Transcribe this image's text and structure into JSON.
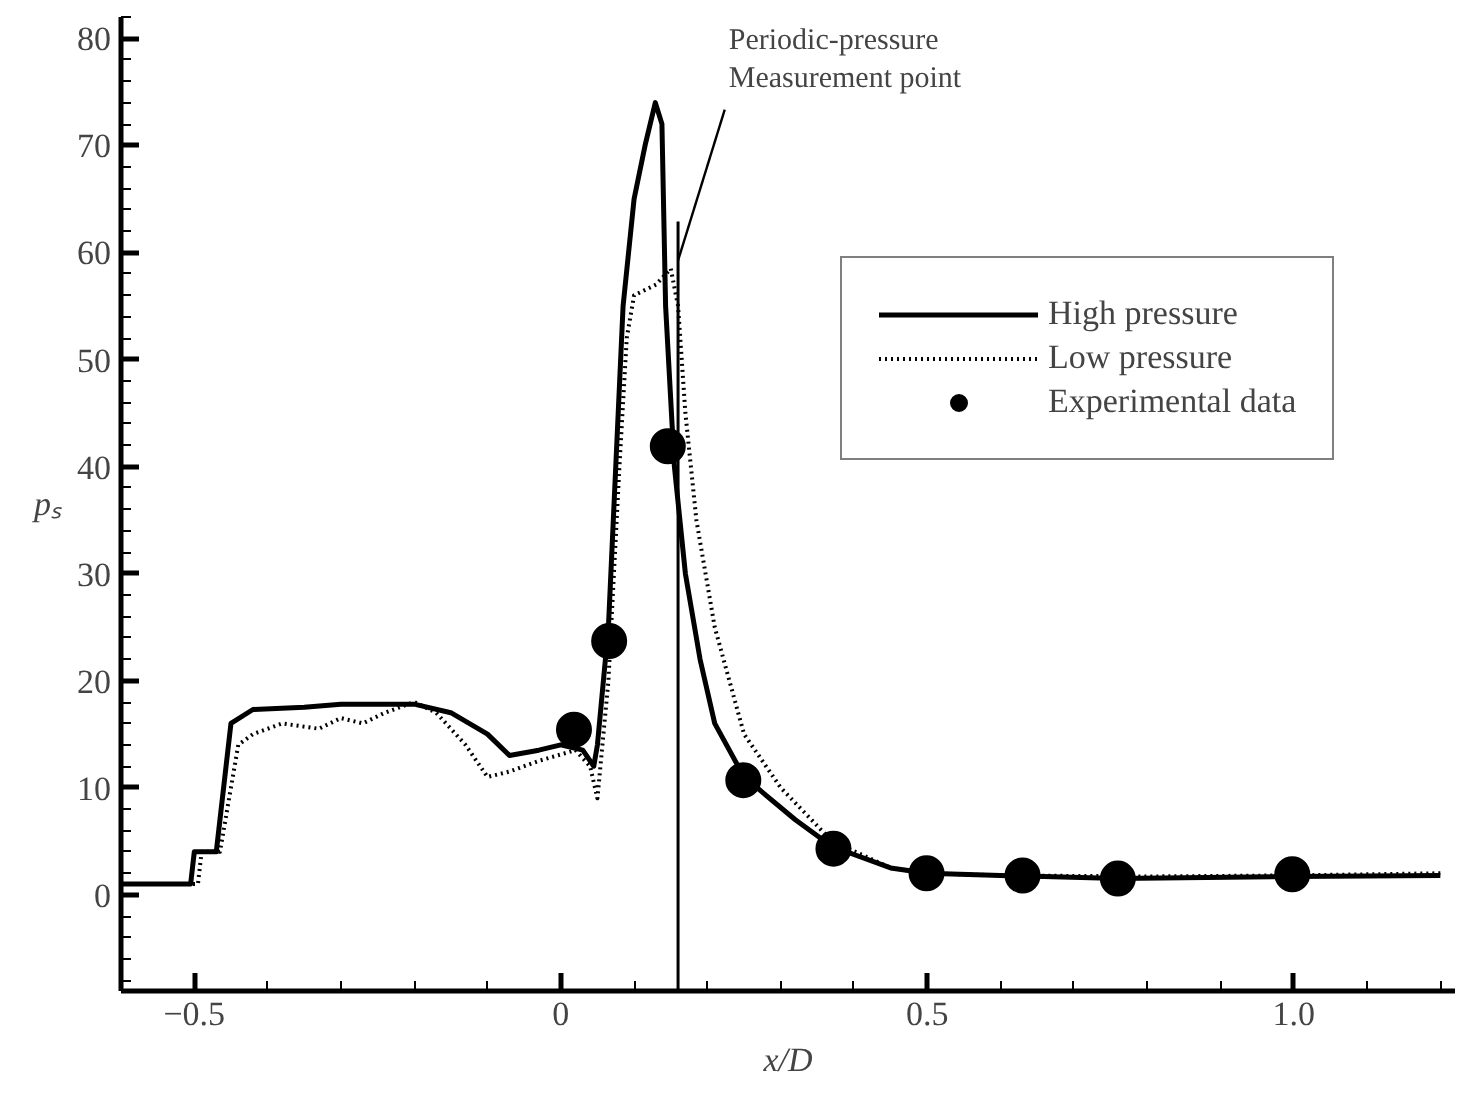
{
  "chart_data": {
    "type": "line",
    "xlabel": "x/D",
    "ylabel": "pₛ",
    "xlim": [
      -0.6,
      1.22
    ],
    "ylim": [
      -9,
      82
    ],
    "xticks": [
      {
        "value": -0.5,
        "label": "−0.5"
      },
      0,
      0.5,
      {
        "value": 1,
        "label": "1.0"
      }
    ],
    "yticks": [
      0,
      10,
      20,
      30,
      40,
      50,
      60,
      70,
      80
    ],
    "grid": false,
    "legend": "top right",
    "ref_lines": [
      {
        "axis": "x",
        "value": 0.16,
        "label": "Periodic-pressure\nMeasurement point"
      }
    ],
    "series": [
      {
        "name": "High pressure",
        "color": "#000000",
        "line_style": "solid",
        "marker": "none",
        "x": [
          -0.6,
          -0.505,
          -0.5,
          -0.47,
          -0.45,
          -0.42,
          -0.35,
          -0.3,
          -0.2,
          -0.15,
          -0.1,
          -0.07,
          -0.03,
          0,
          0.03,
          0.045,
          0.05,
          0.065,
          0.075,
          0.085,
          0.1,
          0.115,
          0.129,
          0.138,
          0.143,
          0.155,
          0.17,
          0.19,
          0.21,
          0.25,
          0.32,
          0.37,
          0.45,
          0.5,
          0.6,
          0.76,
          1.0,
          1.2
        ],
        "values": [
          1,
          1,
          4,
          4,
          16,
          17.3,
          17.5,
          17.8,
          17.8,
          17,
          15,
          13,
          13.5,
          14,
          13.5,
          12,
          14,
          25,
          40,
          55,
          65,
          70,
          74,
          72,
          55,
          40,
          30,
          22,
          16,
          11,
          7,
          4.5,
          2.5,
          2,
          1.8,
          1.5,
          1.7,
          1.8
        ]
      },
      {
        "name": "Low pressure",
        "color": "#000000",
        "line_style": "dotted",
        "marker": "none",
        "x": [
          -0.6,
          -0.495,
          -0.49,
          -0.465,
          -0.44,
          -0.42,
          -0.38,
          -0.33,
          -0.3,
          -0.27,
          -0.24,
          -0.2,
          -0.17,
          -0.13,
          -0.1,
          -0.07,
          -0.03,
          0.02,
          0.04,
          0.05,
          0.065,
          0.08,
          0.09,
          0.1,
          0.13,
          0.15,
          0.16,
          0.17,
          0.185,
          0.21,
          0.25,
          0.3,
          0.37,
          0.45,
          0.5,
          0.6,
          0.8,
          1.0,
          1.2
        ],
        "values": [
          1,
          1,
          4,
          4,
          14,
          15,
          16,
          15.5,
          16.5,
          16,
          17,
          18,
          17,
          14,
          11,
          11.5,
          12.5,
          13.5,
          12,
          9,
          20,
          40,
          52,
          56,
          57,
          58.5,
          55,
          45,
          35,
          25,
          15,
          10,
          5,
          2.5,
          2,
          1.8,
          1.7,
          1.8,
          2
        ]
      },
      {
        "name": "Experimental data",
        "type": "scatter",
        "color": "#000000",
        "marker": "circle",
        "x": [
          0.018,
          0.066,
          0.146,
          0.249,
          0.372,
          0.499,
          0.63,
          0.76,
          0.998
        ],
        "values": [
          15.4,
          23.7,
          41.9,
          10.7,
          4.3,
          2.0,
          1.8,
          1.5,
          1.9
        ]
      }
    ]
  }
}
